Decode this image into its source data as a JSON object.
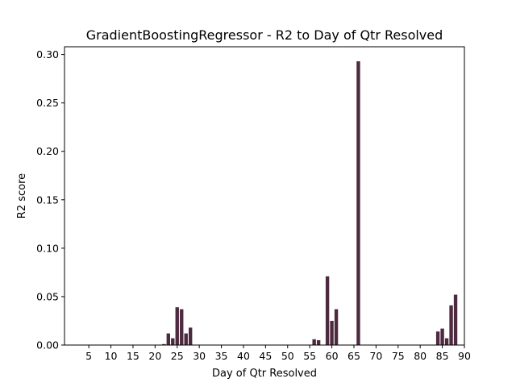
{
  "chart_data": {
    "type": "bar",
    "title": "GradientBoostingRegressor - R2 to Day of Qtr Resolved",
    "xlabel": "Day of Qtr Resolved",
    "ylabel": "R2 score",
    "xlim": [
      -0.5,
      90
    ],
    "ylim": [
      0,
      0.308
    ],
    "xticks": [
      5,
      10,
      15,
      20,
      25,
      30,
      35,
      40,
      45,
      50,
      55,
      60,
      65,
      70,
      75,
      80,
      85,
      90
    ],
    "xtick_labels": [
      "5",
      "10",
      "15",
      "20",
      "25",
      "30",
      "35",
      "40",
      "45",
      "50",
      "55",
      "60",
      "65",
      "70",
      "75",
      "80",
      "85",
      "90"
    ],
    "yticks": [
      0.0,
      0.05,
      0.1,
      0.15,
      0.2,
      0.25,
      0.3
    ],
    "ytick_labels": [
      "0.00",
      "0.05",
      "0.10",
      "0.15",
      "0.20",
      "0.25",
      "0.30"
    ],
    "bar_width": 0.8,
    "bar_color": "#4d2a3f",
    "grid": false,
    "x": [
      22,
      23,
      24,
      25,
      26,
      27,
      28,
      56,
      57,
      59,
      60,
      61,
      66,
      84,
      85,
      86,
      87,
      88
    ],
    "values": [
      0.001,
      0.012,
      0.007,
      0.039,
      0.037,
      0.012,
      0.018,
      0.006,
      0.005,
      0.071,
      0.025,
      0.037,
      0.293,
      0.014,
      0.017,
      0.007,
      0.041,
      0.052
    ]
  }
}
